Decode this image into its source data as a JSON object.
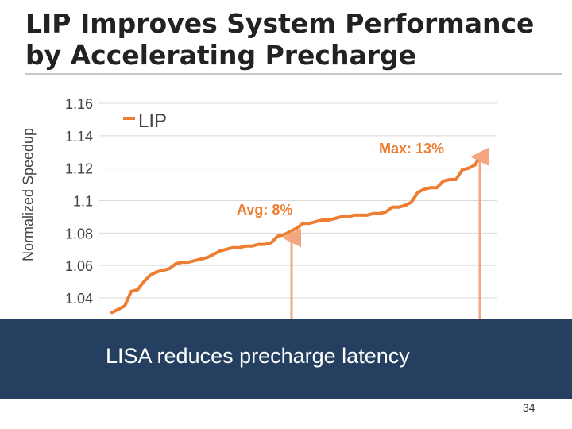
{
  "slide": {
    "title": "LIP Improves System Performance by Accelerating Precharge",
    "banner_text": "LISA reduces precharge latency",
    "page_number": "34"
  },
  "colors": {
    "series": "#ed7d31",
    "arrow": "#f4a582",
    "banner": "#243f60",
    "grid": "#d9d9d9"
  },
  "chart_data": {
    "type": "line",
    "ylabel": "Normalized Speedup",
    "ylim": [
      1.03,
      1.16
    ],
    "yticks": [
      1.04,
      1.06,
      1.08,
      1.1,
      1.12,
      1.14,
      1.16
    ],
    "ytick_labels": [
      "1.04",
      "1.06",
      "1.08",
      "1.1",
      "1.12",
      "1.14",
      "1.16"
    ],
    "grid": true,
    "legend": "top-left",
    "series": [
      {
        "name": "LIP",
        "values": [
          1.031,
          1.033,
          1.035,
          1.044,
          1.045,
          1.05,
          1.054,
          1.056,
          1.057,
          1.058,
          1.061,
          1.062,
          1.062,
          1.063,
          1.064,
          1.065,
          1.067,
          1.069,
          1.07,
          1.071,
          1.071,
          1.072,
          1.072,
          1.073,
          1.073,
          1.074,
          1.078,
          1.079,
          1.081,
          1.083,
          1.086,
          1.086,
          1.087,
          1.088,
          1.088,
          1.089,
          1.09,
          1.09,
          1.091,
          1.091,
          1.091,
          1.092,
          1.092,
          1.093,
          1.096,
          1.096,
          1.097,
          1.099,
          1.105,
          1.107,
          1.108,
          1.108,
          1.112,
          1.113,
          1.113,
          1.119,
          1.12,
          1.122,
          1.129,
          1.129
        ]
      }
    ],
    "annotations": [
      {
        "text": "Avg: 8%",
        "y": 1.08
      },
      {
        "text": "Max: 13%",
        "y": 1.13
      }
    ]
  }
}
